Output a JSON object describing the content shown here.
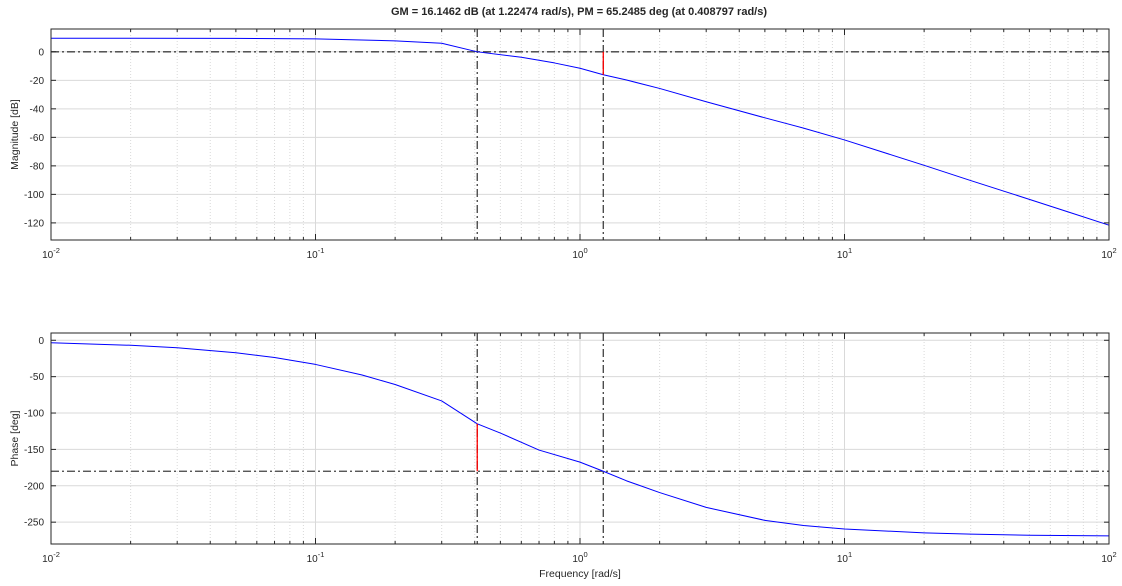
{
  "title": "GM = 16.1462 dB (at 1.22474 rad/s),   PM = 65.2485 deg (at 0.408797 rad/s)",
  "colors": {
    "response": "#0000ff",
    "margin_marker": "#ff0000",
    "reference_line": "#404040",
    "grid": "#d9d9d9",
    "axes": "#262626"
  },
  "chart_data": [
    {
      "type": "line",
      "id": "magnitude",
      "title": "GM = 16.1462 dB (at 1.22474 rad/s),   PM = 65.2485 deg (at 0.408797 rad/s)",
      "xlabel": "",
      "ylabel": "Magnitude [dB]",
      "xscale": "log",
      "xlim": [
        0.01,
        100
      ],
      "ylim": [
        -132,
        16
      ],
      "xticks": [
        0.01,
        0.1,
        1,
        10,
        100
      ],
      "xtick_labels": [
        {
          "base": "10",
          "exp": "-2"
        },
        {
          "base": "10",
          "exp": "-1"
        },
        {
          "base": "10",
          "exp": "0"
        },
        {
          "base": "10",
          "exp": "1"
        },
        {
          "base": "10",
          "exp": "2"
        }
      ],
      "yticks": [
        0,
        -20,
        -40,
        -60,
        -80,
        -100,
        -120
      ],
      "ytick_labels": [
        "0",
        "-20",
        "-40",
        "-60",
        "-80",
        "-100",
        "-120"
      ],
      "grid": true,
      "series": [
        {
          "x": [
            0.01,
            0.02,
            0.05,
            0.1,
            0.2,
            0.3,
            0.408797,
            0.6,
            0.8,
            1.0,
            1.22474,
            1.5,
            2,
            3,
            5,
            7,
            10,
            20,
            30,
            50,
            70,
            100
          ],
          "y": [
            9.54,
            9.52,
            9.42,
            9.05,
            7.7,
            5.99,
            0,
            -3.8,
            -7.8,
            -11.5,
            -16.1,
            -19.8,
            -25.7,
            -35.0,
            -46.3,
            -53.5,
            -61.8,
            -79.6,
            -90.3,
            -103.5,
            -112.3,
            -121.6
          ]
        }
      ],
      "reference_lines": [
        {
          "orientation": "horizontal",
          "value": 0
        },
        {
          "orientation": "vertical",
          "value": 0.408797
        },
        {
          "orientation": "vertical",
          "value": 1.22474
        }
      ],
      "margin_marker": {
        "x": 1.22474,
        "y_from": 0,
        "y_to": -16.1462
      }
    },
    {
      "type": "line",
      "id": "phase",
      "title": "",
      "xlabel": "Frequency [rad/s]",
      "ylabel": "Phase [deg]",
      "xscale": "log",
      "xlim": [
        0.01,
        100
      ],
      "ylim": [
        -280,
        10
      ],
      "xticks": [
        0.01,
        0.1,
        1,
        10,
        100
      ],
      "xtick_labels": [
        {
          "base": "10",
          "exp": "-2"
        },
        {
          "base": "10",
          "exp": "-1"
        },
        {
          "base": "10",
          "exp": "0"
        },
        {
          "base": "10",
          "exp": "1"
        },
        {
          "base": "10",
          "exp": "2"
        }
      ],
      "yticks": [
        0,
        -50,
        -100,
        -150,
        -200,
        -250
      ],
      "ytick_labels": [
        "0",
        "-50",
        "-100",
        "-150",
        "-200",
        "-250"
      ],
      "grid": true,
      "series": [
        {
          "x": [
            0.01,
            0.02,
            0.03,
            0.05,
            0.07,
            0.1,
            0.15,
            0.2,
            0.3,
            0.408797,
            0.5,
            0.7,
            1.0,
            1.22474,
            1.5,
            2,
            3,
            5,
            7,
            10,
            20,
            30,
            50,
            100
          ],
          "y": [
            -3.4,
            -6.9,
            -10.3,
            -17.1,
            -23.7,
            -33.2,
            -47.7,
            -60.8,
            -83.4,
            -114.8,
            -127.5,
            -150.9,
            -167.5,
            -180.0,
            -193.2,
            -209.3,
            -229.7,
            -247.5,
            -254.5,
            -259.4,
            -264.7,
            -266.5,
            -267.9,
            -268.9
          ]
        }
      ],
      "reference_lines": [
        {
          "orientation": "horizontal",
          "value": -180
        },
        {
          "orientation": "vertical",
          "value": 0.408797
        },
        {
          "orientation": "vertical",
          "value": 1.22474
        }
      ],
      "margin_marker": {
        "x": 0.408797,
        "y_from": -180,
        "y_to": -114.7515
      }
    }
  ]
}
